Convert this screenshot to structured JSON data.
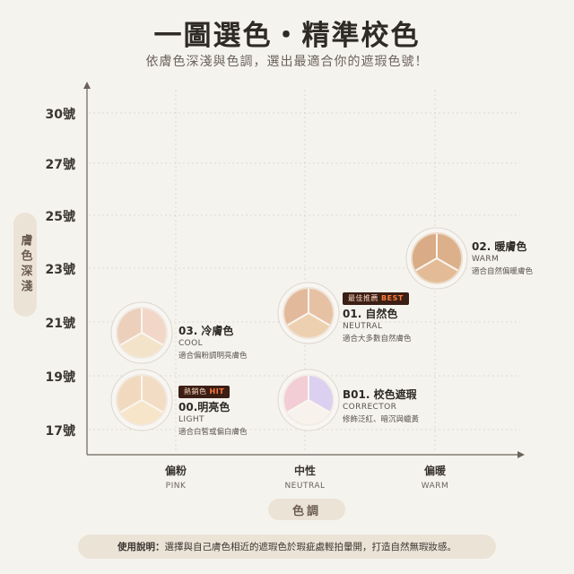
{
  "header": {
    "title": "一圖選色・精準校色",
    "subtitle": "依膚色深淺與色調，選出最適合你的遮瑕色號！"
  },
  "axes": {
    "y_label": "膚色深淺",
    "x_label": "色調",
    "y_ticks": [
      "30號",
      "27號",
      "25號",
      "23號",
      "21號",
      "19號",
      "17號"
    ],
    "x_categories": [
      {
        "zh": "偏粉",
        "en": "PINK"
      },
      {
        "zh": "中性",
        "en": "NEUTRAL"
      },
      {
        "zh": "偏暖",
        "en": "WARM"
      }
    ]
  },
  "products": [
    {
      "name": "03. 冷膚色",
      "en": "COOL",
      "desc": "適合偏粉調明亮膚色",
      "badge": "",
      "colors": [
        "#ecd0bc",
        "#f2d7c9",
        "#f3e3c8"
      ]
    },
    {
      "name": "00.明亮色",
      "en": "LIGHT",
      "desc": "適合白皙或偏白膚色",
      "badge_main": "熱銷色",
      "badge_hl": "HIT",
      "colors": [
        "#f1d9bf",
        "#f3dcc4",
        "#f6e5c8"
      ]
    },
    {
      "name": "01. 自然色",
      "en": "NEUTRAL",
      "desc": "適合大多數自然膚色",
      "badge_main": "最佳推薦",
      "badge_hl": "BEST",
      "colors": [
        "#e3b99c",
        "#e6c1a3",
        "#ecd0b0"
      ]
    },
    {
      "name": "B01. 校色遮瑕",
      "en": "CORRECTOR",
      "desc": "修飾泛紅、暗沉與蠟黃",
      "badge": "",
      "colors": [
        "#f2cdd5",
        "#dcd0f0",
        "#f8f2ec"
      ]
    },
    {
      "name": "02. 暖膚色",
      "en": "WARM",
      "desc": "適合自然偏暖膚色",
      "badge": "",
      "colors": [
        "#d9ab86",
        "#dcb08a",
        "#e3bc97"
      ]
    }
  ],
  "usage": {
    "label": "使用說明：",
    "text": "選擇與自己膚色相近的遮瑕色於瑕疵處輕拍暈開，打造自然無瑕妝感。"
  }
}
